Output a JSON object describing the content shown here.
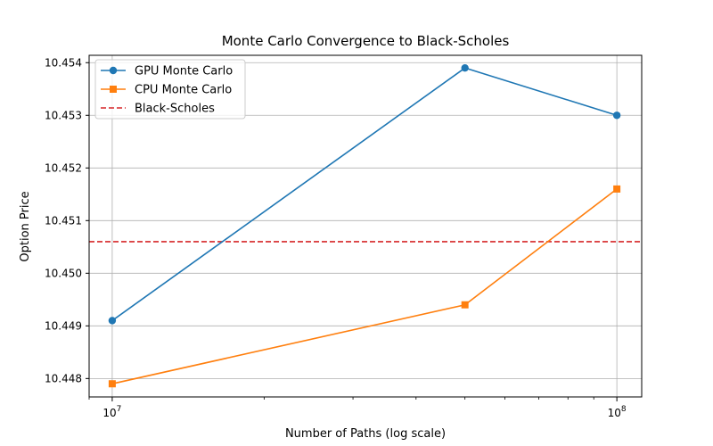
{
  "chart_data": {
    "type": "line",
    "title": "Monte Carlo Convergence to Black-Scholes",
    "xlabel": "Number of Paths (log scale)",
    "ylabel": "Option Price",
    "x_scale": "log",
    "xlim": [
      9000000,
      112000000
    ],
    "ylim": [
      10.44765,
      10.45414
    ],
    "grid": true,
    "legend_position": "top-left",
    "x_ticks": [
      {
        "value": 10000000,
        "label_base": "10",
        "label_exp": "7"
      },
      {
        "value": 100000000,
        "label_base": "10",
        "label_exp": "8"
      }
    ],
    "y_ticks": [
      {
        "value": 10.448,
        "label": "10.448"
      },
      {
        "value": 10.449,
        "label": "10.449"
      },
      {
        "value": 10.45,
        "label": "10.450"
      },
      {
        "value": 10.451,
        "label": "10.451"
      },
      {
        "value": 10.452,
        "label": "10.452"
      },
      {
        "value": 10.453,
        "label": "10.453"
      },
      {
        "value": 10.454,
        "label": "10.454"
      }
    ],
    "series": [
      {
        "name": "GPU Monte Carlo",
        "color": "#1f77b4",
        "marker": "circle",
        "x": [
          10000000,
          50000000,
          100000000
        ],
        "y": [
          10.4491,
          10.4539,
          10.453
        ]
      },
      {
        "name": "CPU Monte Carlo",
        "color": "#ff7f0e",
        "marker": "square",
        "x": [
          10000000,
          50000000,
          100000000
        ],
        "y": [
          10.4479,
          10.4494,
          10.4516
        ]
      }
    ],
    "reference_line": {
      "name": "Black-Scholes",
      "color": "#d62728",
      "style": "dashed",
      "y": 10.4506
    }
  }
}
